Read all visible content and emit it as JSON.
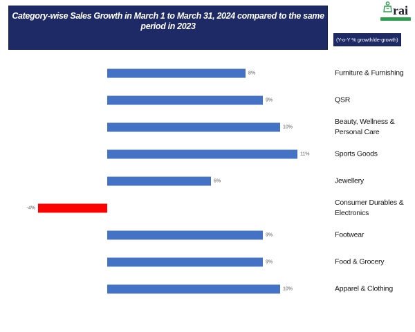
{
  "title": "Category-wise Sales Growth in March 1 to March 31, 2024 compared to the same period in 2023",
  "title_lines": [
    "Category-wise Sales Growth in March 1 to March 31, 2024 compared to the same",
    "period in 2023"
  ],
  "legend_note": "(Y-o-Y % growth/de-growth)",
  "logo": {
    "text": "rai"
  },
  "colors": {
    "navy": "#1e2a66",
    "positive_bar": "#4472c4",
    "negative_bar": "#ff0000",
    "logo_green": "#2e9e4f",
    "value_label": "#595959"
  },
  "chart_data": {
    "type": "bar",
    "orientation": "horizontal",
    "value_unit": "%",
    "xlim": [
      -6,
      13
    ],
    "grid": false,
    "legend_position": "none",
    "categories": [
      "Furniture & Furnishing",
      "QSR",
      "Beauty, Wellness & Personal Care",
      "Sports Goods",
      "Jewellery",
      "Consumer Durables & Electronics",
      "Footwear",
      "Food & Grocery",
      "Apparel & Clothing"
    ],
    "values": [
      8,
      9,
      10,
      11,
      6,
      -4,
      9,
      9,
      10
    ],
    "labels": [
      "8%",
      "9%",
      "10%",
      "11%",
      "6%",
      "-4%",
      "9%",
      "9%",
      "10%"
    ]
  }
}
